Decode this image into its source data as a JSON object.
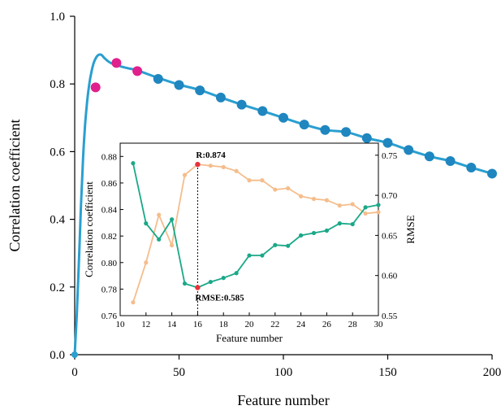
{
  "chart_data": [
    {
      "type": "line",
      "xlabel": "Feature number",
      "ylabel": "Correlation coefficient",
      "xlim": [
        0,
        200
      ],
      "ylim": [
        0.0,
        1.0
      ],
      "x_ticks": [
        "0",
        "50",
        "100",
        "150",
        "200"
      ],
      "y_ticks": [
        "0.0",
        "0.2",
        "0.4",
        "0.6",
        "0.8",
        "1.0"
      ],
      "curve": {
        "x": [
          0,
          1,
          2,
          3,
          4,
          5,
          6,
          7,
          8,
          9,
          10,
          11,
          12,
          13,
          14,
          15,
          16,
          17,
          18,
          19,
          20,
          22,
          25,
          30,
          40,
          50,
          60,
          70,
          80,
          90,
          100,
          110,
          120,
          130,
          140,
          150,
          160,
          170,
          180,
          190,
          200
        ],
        "y": [
          0.0,
          0.12,
          0.27,
          0.44,
          0.58,
          0.68,
          0.75,
          0.8,
          0.835,
          0.86,
          0.875,
          0.884,
          0.887,
          0.885,
          0.878,
          0.872,
          0.867,
          0.863,
          0.86,
          0.858,
          0.856,
          0.852,
          0.847,
          0.84,
          0.818,
          0.798,
          0.782,
          0.76,
          0.739,
          0.72,
          0.7,
          0.68,
          0.664,
          0.658,
          0.64,
          0.626,
          0.605,
          0.586,
          0.572,
          0.553,
          0.535
        ],
        "color": "#2a9fd0"
      },
      "markers": {
        "x": [
          0,
          10,
          20,
          30,
          40,
          50,
          60,
          70,
          80,
          90,
          100,
          110,
          120,
          130,
          140,
          150,
          160,
          170,
          180,
          190,
          200
        ],
        "y": [
          0.0,
          0.79,
          0.862,
          0.838,
          0.815,
          0.797,
          0.781,
          0.76,
          0.739,
          0.72,
          0.7,
          0.68,
          0.664,
          0.658,
          0.64,
          0.626,
          0.605,
          0.586,
          0.572,
          0.553,
          0.535
        ],
        "colors": [
          "#2a9fd0",
          "#e0208c",
          "#e0208c",
          "#e0208c",
          "#1f86bf",
          "#1f86bf",
          "#1f86bf",
          "#1f86bf",
          "#1f86bf",
          "#1f86bf",
          "#1f86bf",
          "#1f86bf",
          "#1f86bf",
          "#1f86bf",
          "#1f86bf",
          "#1f86bf",
          "#1f86bf",
          "#1f86bf",
          "#1f86bf",
          "#1f86bf",
          "#1f86bf"
        ]
      }
    },
    {
      "type": "line",
      "inset": true,
      "xlabel": "Feature number",
      "ylabel_left": "Correlation coefficient",
      "ylabel_right": "RMSE",
      "xlim": [
        10,
        30
      ],
      "ylim_left": [
        0.76,
        0.89
      ],
      "ylim_right": [
        0.55,
        0.765
      ],
      "x_ticks": [
        "10",
        "12",
        "14",
        "16",
        "18",
        "20",
        "22",
        "24",
        "26",
        "28",
        "30"
      ],
      "y_ticks_left": [
        "0.76",
        "0.78",
        "0.80",
        "0.82",
        "0.84",
        "0.86",
        "0.88"
      ],
      "y_ticks_right": [
        "0.55",
        "0.60",
        "0.65",
        "0.70",
        "0.75"
      ],
      "x": [
        11,
        12,
        13,
        14,
        15,
        16,
        17,
        18,
        19,
        20,
        21,
        22,
        23,
        24,
        25,
        26,
        27,
        28,
        29,
        30
      ],
      "series": [
        {
          "axis": "left",
          "color": "#f5bd8c",
          "values": [
            0.77,
            0.8,
            0.836,
            0.813,
            0.866,
            0.874,
            0.873,
            0.872,
            0.869,
            0.862,
            0.862,
            0.855,
            0.856,
            0.85,
            0.848,
            0.847,
            0.843,
            0.844,
            0.837,
            0.838
          ]
        },
        {
          "axis": "right",
          "color": "#1aa888",
          "values": [
            0.74,
            0.665,
            0.645,
            0.67,
            0.59,
            0.585,
            0.592,
            0.597,
            0.603,
            0.625,
            0.625,
            0.638,
            0.637,
            0.65,
            0.653,
            0.656,
            0.665,
            0.664,
            0.685,
            0.688
          ]
        }
      ],
      "highlight": {
        "x": 16,
        "color": "#e8313a",
        "r_label": "R:0.874",
        "rmse_label": "RMSE:0.585"
      }
    }
  ]
}
